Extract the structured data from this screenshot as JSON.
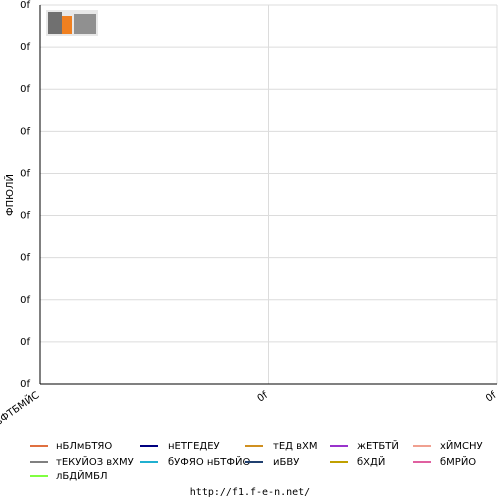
{
  "chart_data": {
    "type": "line",
    "y_label": "ФПЮЛЙ",
    "categories": [
      "ьФТБМЙС",
      "0f",
      "0f"
    ],
    "series": [
      {
        "name": "нБЛмБТЯО",
        "color": "#e07040",
        "values": [
          null,
          null,
          null
        ]
      },
      {
        "name": "нЕТГЕДЕУ",
        "color": "#000080",
        "values": [
          null,
          null,
          null
        ]
      },
      {
        "name": "тЕД вХМ",
        "color": "#d09020",
        "values": [
          null,
          null,
          null
        ]
      },
      {
        "name": "жЕТБТЙ",
        "color": "#9933cc",
        "values": [
          null,
          null,
          null
        ]
      },
      {
        "name": "хЙМСНУ",
        "color": "#f0a090",
        "values": [
          null,
          null,
          null
        ]
      },
      {
        "name": "тЕКУЙОЗ вХМУ",
        "color": "#808080",
        "values": [
          null,
          null,
          null
        ]
      },
      {
        "name": "бУФЯО нБТФЙО",
        "color": "#20b0d0",
        "values": [
          null,
          null,
          null
        ]
      },
      {
        "name": "иБВУ",
        "color": "#204070",
        "values": [
          null,
          null,
          null
        ]
      },
      {
        "name": "бХДЙ",
        "color": "#c0a000",
        "values": [
          null,
          null,
          null
        ]
      },
      {
        "name": "бМРЙО",
        "color": "#e060a0",
        "values": [
          null,
          null,
          null
        ]
      },
      {
        "name": "лБДЙМБЛ",
        "color": "#80ff40",
        "values": [
          null,
          null,
          null
        ]
      }
    ],
    "ylim": [
      0,
      9
    ],
    "yticks": [
      {
        "value": 0,
        "label": "0f"
      },
      {
        "value": 1,
        "label": "0f"
      },
      {
        "value": 2,
        "label": "0f"
      },
      {
        "value": 3,
        "label": "0f"
      },
      {
        "value": 4,
        "label": "0f"
      },
      {
        "value": 5,
        "label": "0f"
      },
      {
        "value": 6,
        "label": "0f"
      },
      {
        "value": 7,
        "label": "0f"
      },
      {
        "value": 8,
        "label": "0f"
      },
      {
        "value": 9,
        "label": "0f"
      }
    ],
    "grid": true
  },
  "footer": "http://f1.f-e-n.net/"
}
